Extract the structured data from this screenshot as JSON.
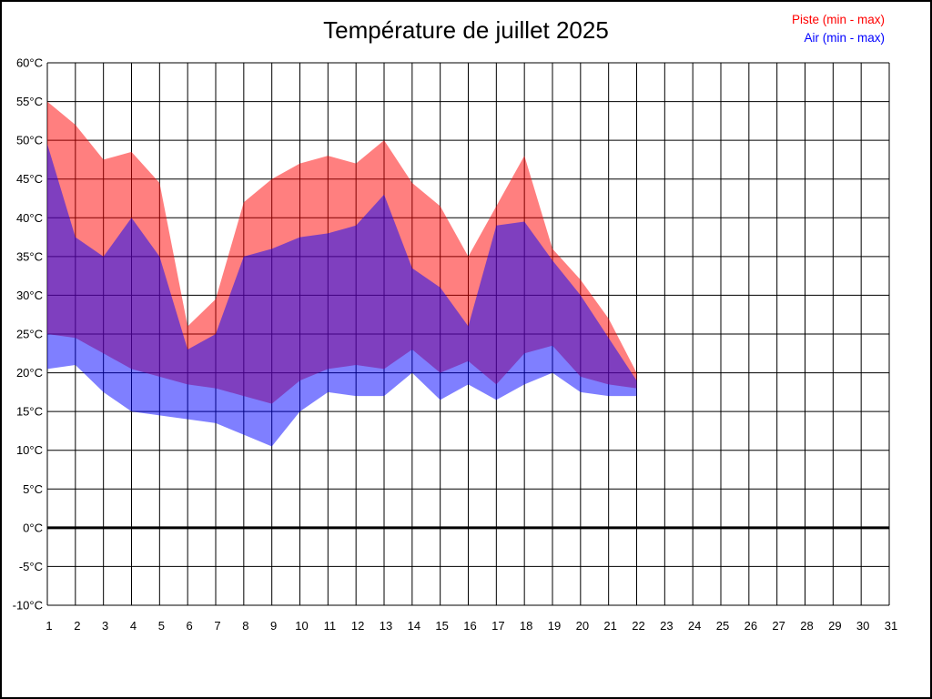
{
  "header": {
    "title": "Température de juillet 2025"
  },
  "legend": {
    "items": [
      {
        "label": "Piste (min - max)",
        "color": "#ff0000"
      },
      {
        "label": "Air (min - max)",
        "color": "#0000ff"
      }
    ]
  },
  "chart_data": {
    "type": "area",
    "title": "Température de juillet 2025",
    "x_unit": "jour de juillet 2025",
    "categories": [
      1,
      2,
      3,
      4,
      5,
      6,
      7,
      8,
      9,
      10,
      11,
      12,
      13,
      14,
      15,
      16,
      17,
      18,
      19,
      20,
      21,
      22,
      23,
      24,
      25,
      26,
      27,
      28,
      29,
      30,
      31
    ],
    "x_with_data": [
      1,
      2,
      3,
      4,
      5,
      6,
      7,
      8,
      9,
      10,
      11,
      12,
      13,
      14,
      15,
      16,
      17,
      18,
      19,
      20,
      21,
      22
    ],
    "y_axis": {
      "min": -10,
      "max": 60,
      "step": 5,
      "unit": "°C",
      "tick_labels": [
        "60°C",
        "55°C",
        "50°C",
        "45°C",
        "40°C",
        "35°C",
        "30°C",
        "25°C",
        "20°C",
        "15°C",
        "10°C",
        "5°C",
        "0°C",
        "-5°C",
        "-10°C"
      ]
    },
    "grid": true,
    "zero_line": {
      "value": 0,
      "color": "#000000",
      "width": 3
    },
    "legend_position": "top-right",
    "series": [
      {
        "name": "Piste (min - max)",
        "legend_color": "#ff0000",
        "fill": "rgba(255,0,0,0.5)",
        "max": [
          55,
          52,
          47.5,
          48.5,
          44.5,
          26,
          29.5,
          42,
          45,
          47,
          48,
          47,
          50,
          44.5,
          41.5,
          35,
          41.5,
          48,
          36,
          32,
          27,
          20
        ],
        "min": [
          25,
          24.5,
          22.5,
          20.5,
          19.5,
          18.5,
          18,
          17,
          16,
          19,
          20.5,
          21,
          20.5,
          23,
          20,
          21.5,
          18.5,
          22.5,
          23.5,
          19.5,
          18.5,
          18
        ]
      },
      {
        "name": "Air (min - max)",
        "legend_color": "#0000ff",
        "fill": "rgba(0,0,255,0.5)",
        "max": [
          49.5,
          37.5,
          35,
          40,
          35,
          23,
          25,
          35,
          36,
          37.5,
          38,
          39,
          43,
          33.5,
          31,
          26,
          39,
          39.5,
          34.5,
          30,
          24.5,
          19
        ],
        "min": [
          20.5,
          21,
          17.5,
          15,
          14.5,
          14,
          13.5,
          12,
          10.5,
          15,
          17.5,
          17,
          17,
          20,
          16.5,
          18.5,
          16.5,
          18.5,
          20,
          17.5,
          17,
          17
        ]
      }
    ]
  }
}
